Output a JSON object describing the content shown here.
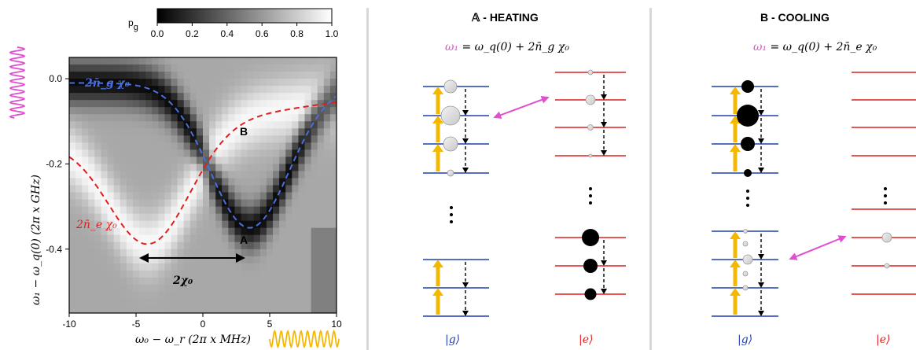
{
  "chart_data": {
    "type": "heatmap",
    "xlabel": "ω₀ − ω_r (2π x MHz)",
    "ylabel": "ω₁ − ω_q(0) (2π x GHz)",
    "x_ticks": [
      "-10",
      "-5",
      "0",
      "5",
      "10"
    ],
    "y_ticks": [
      "0.0",
      "-0.2",
      "-0.4"
    ],
    "xlim": [
      -10,
      10
    ],
    "ylim": [
      -0.55,
      0.05
    ],
    "colorbar": {
      "label": "p",
      "label_sub": "g",
      "ticks": [
        "0.0",
        "0.2",
        "0.4",
        "0.6",
        "0.8",
        "1.0"
      ],
      "range": [
        0,
        1
      ]
    },
    "series": [
      {
        "name": "2n̄_g χ₀",
        "color": "#4a6fe0",
        "style": "dashed"
      },
      {
        "name": "2n̄_e χ₀",
        "color": "#e01e1e",
        "style": "dashed"
      }
    ],
    "annotations": {
      "point_a": "A",
      "point_b": "B",
      "chi_label": "2χ₀"
    }
  },
  "colors": {
    "blue_level": "#1f3fb0",
    "red_level": "#e01e1e",
    "arrow": "#f5b800",
    "drive_pink": "#e04fd0",
    "drive_gold": "#f5b800"
  },
  "heating": {
    "title_prefix": "𝔸",
    "title_rest": " - HEATING",
    "formula": "ω₁ = ω_q(0) + 2n̄_g χ₀",
    "formula_lhs": "ω₁",
    "formula_rhs": " = ω_q(0) + 2n̄_g χ₀",
    "ket_g": "|g⟩",
    "ket_e": "|e⟩",
    "dots": "⋮"
  },
  "cooling": {
    "title": "B - COOLING",
    "formula_lhs": "ω₁",
    "formula_rhs": " = ω_q(0) + 2n̄_e χ₀",
    "ket_g": "|g⟩",
    "ket_e": "|e⟩",
    "dots": "⋮"
  },
  "labels": {
    "curve_g": "2n̄_g χ₀",
    "curve_e": "2n̄_e χ₀"
  }
}
